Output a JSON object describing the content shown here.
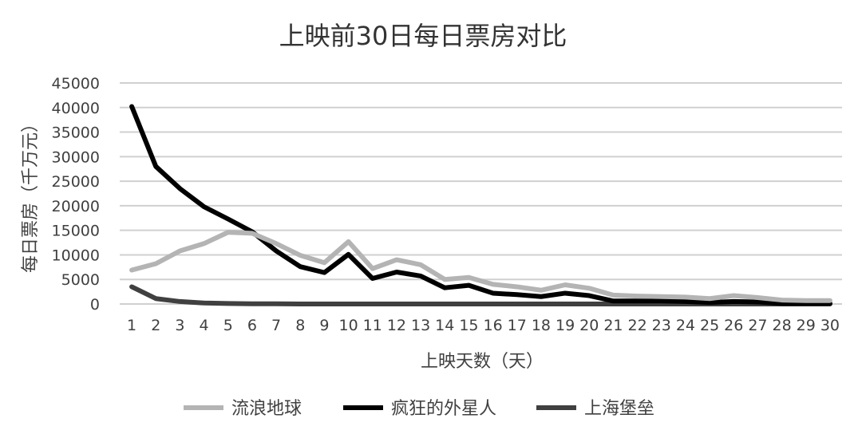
{
  "chart_data": {
    "type": "line",
    "title": "上映前30日每日票房对比",
    "xlabel": "上映天数（天）",
    "ylabel": "每日票房（千万元）",
    "ylim": [
      0,
      45000
    ],
    "yticks": [
      0,
      5000,
      10000,
      15000,
      20000,
      25000,
      30000,
      35000,
      40000,
      45000
    ],
    "grid": true,
    "legend_position": "bottom",
    "categories": [
      "1",
      "2",
      "3",
      "4",
      "5",
      "6",
      "7",
      "8",
      "9",
      "10",
      "11",
      "12",
      "13",
      "14",
      "15",
      "16",
      "17",
      "18",
      "19",
      "20",
      "21",
      "22",
      "23",
      "24",
      "25",
      "26",
      "27",
      "28",
      "29",
      "30"
    ],
    "series": [
      {
        "name": "流浪地球",
        "color": "#b4b4b4",
        "values": [
          6900,
          8200,
          10800,
          12300,
          14600,
          14400,
          12300,
          9900,
          8400,
          12700,
          7200,
          9000,
          8000,
          5000,
          5400,
          4000,
          3500,
          2800,
          3900,
          3200,
          1800,
          1600,
          1500,
          1400,
          1100,
          1700,
          1300,
          800,
          700,
          700
        ]
      },
      {
        "name": "疯狂的外星人",
        "color": "#000000",
        "values": [
          40200,
          28000,
          23500,
          19800,
          17300,
          14700,
          10800,
          7600,
          6400,
          10100,
          5200,
          6500,
          5700,
          3300,
          3800,
          2200,
          1900,
          1500,
          2200,
          1700,
          600,
          600,
          600,
          500,
          300,
          500,
          400,
          100,
          100,
          100
        ]
      },
      {
        "name": "上海堡垒",
        "color": "#404040",
        "values": [
          3500,
          1100,
          500,
          200,
          100,
          50,
          50,
          0,
          0,
          0,
          0,
          0,
          0,
          0,
          0,
          0,
          0,
          0,
          0,
          0,
          0,
          0,
          0,
          0,
          0,
          0,
          0,
          0,
          0,
          0
        ]
      }
    ]
  }
}
